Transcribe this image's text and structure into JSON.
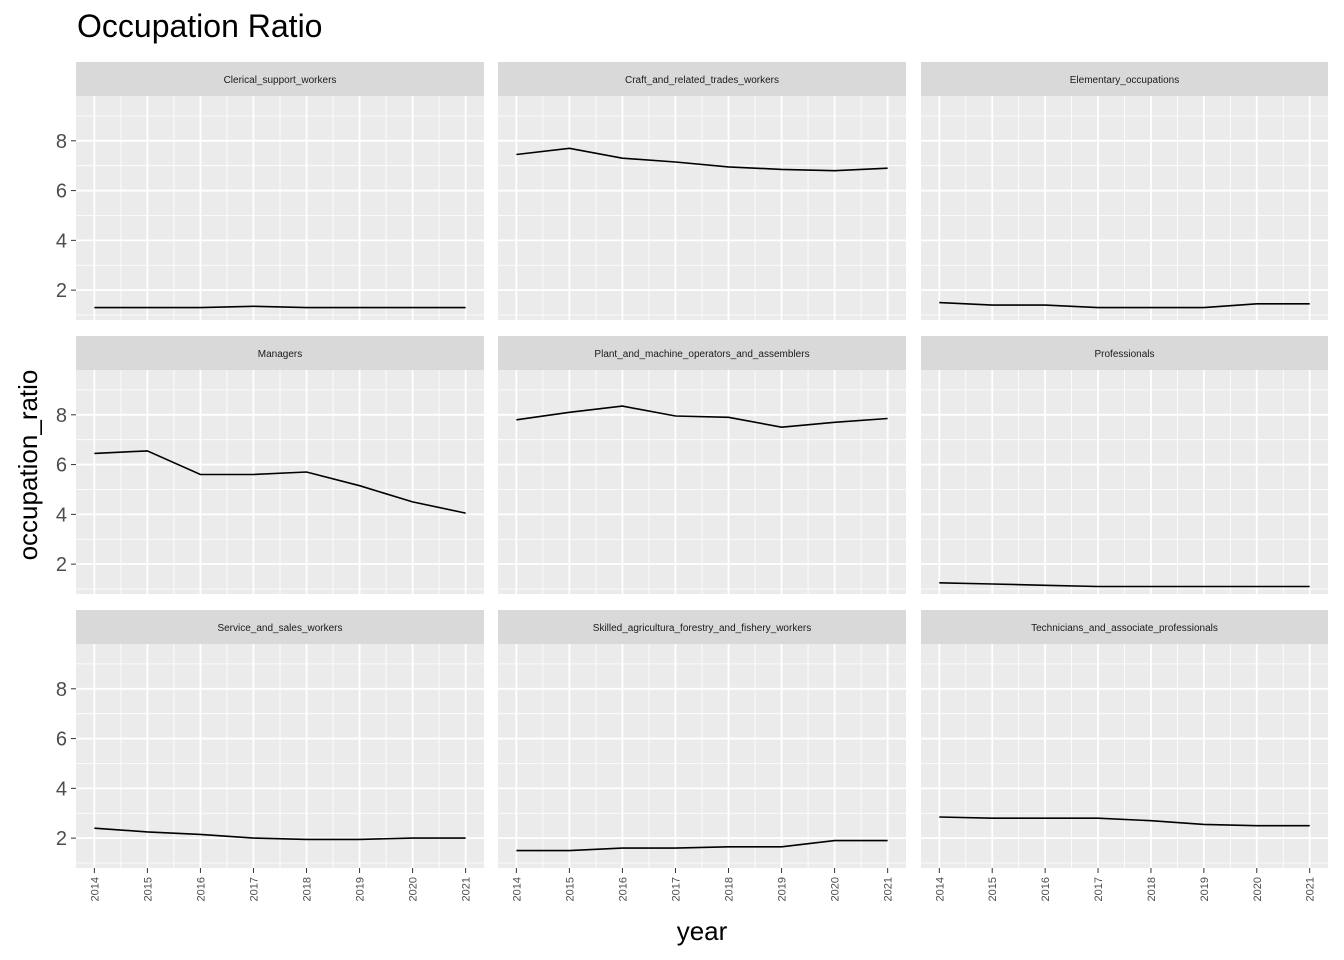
{
  "chart_data": {
    "type": "line",
    "title": "Occupation Ratio",
    "xlabel": "year",
    "ylabel": "occupation_ratio",
    "x": [
      2014,
      2015,
      2016,
      2017,
      2018,
      2019,
      2020,
      2021
    ],
    "ylim": [
      0.8,
      9.8
    ],
    "yticks": [
      2,
      4,
      6,
      8
    ],
    "grid": true,
    "facet_layout": "3x3",
    "series": [
      {
        "name": "Clerical_support_workers",
        "values": [
          1.3,
          1.3,
          1.3,
          1.35,
          1.3,
          1.3,
          1.3,
          1.3
        ]
      },
      {
        "name": "Craft_and_related_trades_workers",
        "values": [
          7.45,
          7.7,
          7.3,
          7.15,
          6.95,
          6.85,
          6.8,
          6.9
        ]
      },
      {
        "name": "Elementary_occupations",
        "values": [
          1.5,
          1.4,
          1.4,
          1.3,
          1.3,
          1.3,
          1.45,
          1.45
        ]
      },
      {
        "name": "Managers",
        "values": [
          6.45,
          6.55,
          5.6,
          5.6,
          5.7,
          5.15,
          4.5,
          4.05
        ]
      },
      {
        "name": "Plant_and_machine_operators_and_assemblers",
        "values": [
          7.8,
          8.1,
          8.35,
          7.95,
          7.9,
          7.5,
          7.7,
          7.85
        ]
      },
      {
        "name": "Professionals",
        "values": [
          1.25,
          1.2,
          1.15,
          1.1,
          1.1,
          1.1,
          1.1,
          1.1
        ]
      },
      {
        "name": "Service_and_sales_workers",
        "values": [
          2.4,
          2.25,
          2.15,
          2.0,
          1.95,
          1.95,
          2.0,
          2.0
        ]
      },
      {
        "name": "Skilled_agricultura_forestry_and_fishery_workers",
        "values": [
          1.5,
          1.5,
          1.6,
          1.6,
          1.65,
          1.65,
          1.9,
          1.9
        ]
      },
      {
        "name": "Technicians_and_associate_professionals",
        "values": [
          2.85,
          2.8,
          2.8,
          2.8,
          2.7,
          2.55,
          2.5,
          2.5
        ]
      }
    ],
    "colors": {
      "panel_bg": "#ebebeb",
      "strip_bg": "#d9d9d9",
      "grid": "#ffffff",
      "line": "#000000"
    }
  }
}
